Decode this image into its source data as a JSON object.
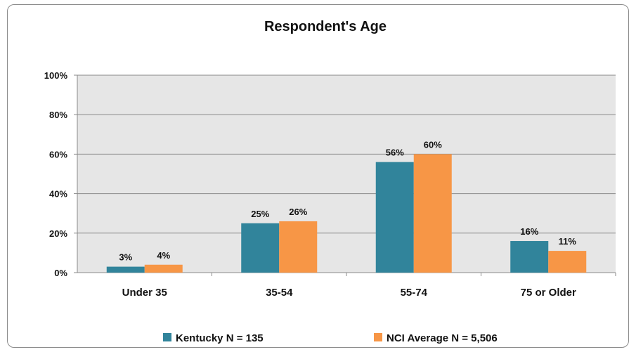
{
  "chart_data": {
    "type": "bar",
    "title": "Respondent's Age",
    "categories": [
      "Under 35",
      "35-54",
      "55-74",
      "75 or Older"
    ],
    "series": [
      {
        "name": "Kentucky N = 135",
        "values": [
          3,
          25,
          56,
          16
        ],
        "labels": [
          "3%",
          "25%",
          "56%",
          "16%"
        ],
        "color": "#31849b"
      },
      {
        "name": "NCI Average N = 5,506",
        "values": [
          4,
          26,
          60,
          11
        ],
        "labels": [
          "4%",
          "26%",
          "60%",
          "11%"
        ],
        "color": "#f79646"
      }
    ],
    "ylim": [
      0,
      100
    ],
    "yticks": [
      "0%",
      "20%",
      "40%",
      "60%",
      "80%",
      "100%"
    ],
    "ytick_values": [
      0,
      20,
      40,
      60,
      80,
      100
    ],
    "grid": true,
    "legend_position": "bottom",
    "plot_background": "#e6e6e6"
  }
}
